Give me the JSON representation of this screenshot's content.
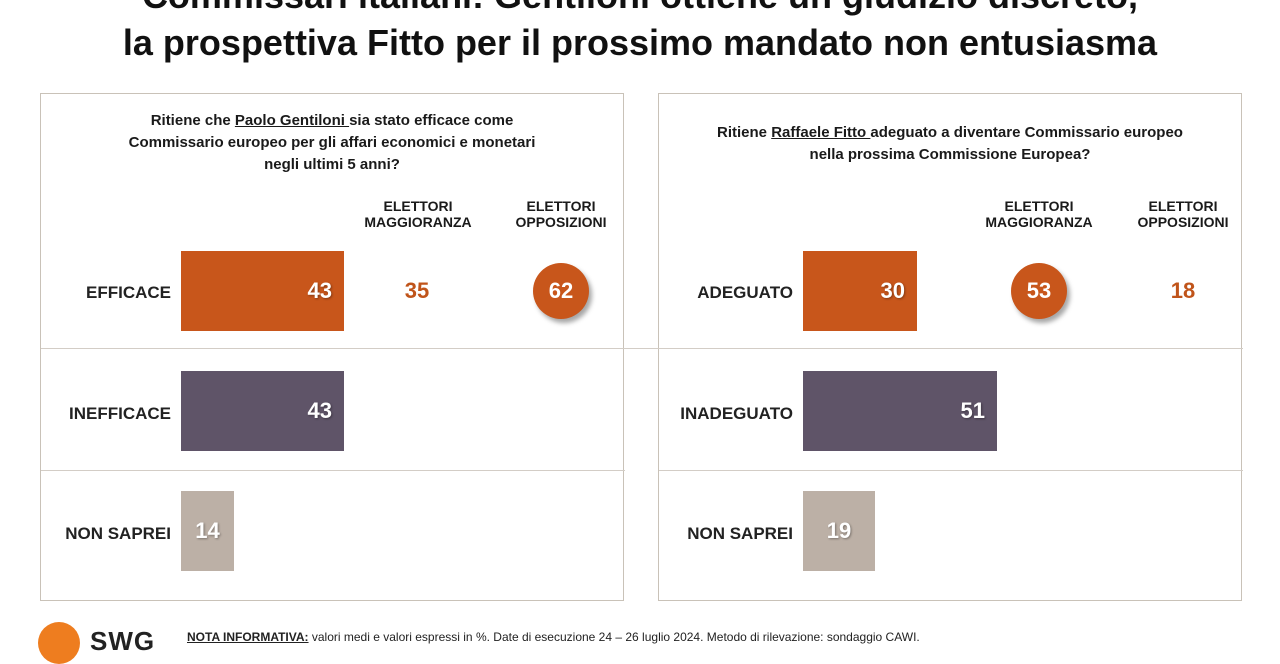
{
  "header": {
    "title_line1": "Commissari italiani: Gentiloni ottiene un giudizio discreto,",
    "title_line2": "la prospettiva Fitto per il prossimo mandato non entusiasma"
  },
  "colors": {
    "orange": "#c8561b",
    "purple": "#5f5468",
    "beige": "#bcb0a6",
    "value_orange": "#c0541a"
  },
  "column_headers": {
    "majority_line1": "ELETTORI",
    "majority_line2": "MAGGIORANZA",
    "opposition_line1": "ELETTORI",
    "opposition_line2": "OPPOSIZIONI"
  },
  "chart_data": [
    {
      "type": "bar",
      "question_prefix": "Ritiene che ",
      "question_name": "Paolo Gentiloni ",
      "question_line1_rest": "sia stato efficace come",
      "question_line2": "Commissario europeo per gli affari economici e monetari",
      "question_line3": "negli ultimi 5 anni?",
      "categories": [
        "EFFICACE",
        "INEFFICACE",
        "NON SAPREI"
      ],
      "values": [
        43,
        43,
        14
      ],
      "xlim": [
        0,
        100
      ],
      "breakdown": {
        "category": "EFFICACE",
        "majority": 35,
        "opposition": 62,
        "highlighted": "opposition"
      }
    },
    {
      "type": "bar",
      "question_prefix": "Ritiene ",
      "question_name": "Raffaele Fitto ",
      "question_line1_rest": "adeguato a diventare Commissario europeo",
      "question_line2": "nella prossima Commissione Europea?",
      "question_line3": "",
      "categories": [
        "ADEGUATO",
        "INADEGUATO",
        "NON SAPREI"
      ],
      "values": [
        30,
        51,
        19
      ],
      "xlim": [
        0,
        100
      ],
      "breakdown": {
        "category": "ADEGUATO",
        "majority": 53,
        "opposition": 18,
        "highlighted": "majority"
      }
    }
  ],
  "footer": {
    "logo_text": "SWG",
    "note_label": "NOTA INFORMATIVA:",
    "note_text": " valori medi e valori espressi in %. Date di esecuzione 24 – 26 luglio 2024. Metodo di rilevazione: sondaggio CAWI."
  }
}
